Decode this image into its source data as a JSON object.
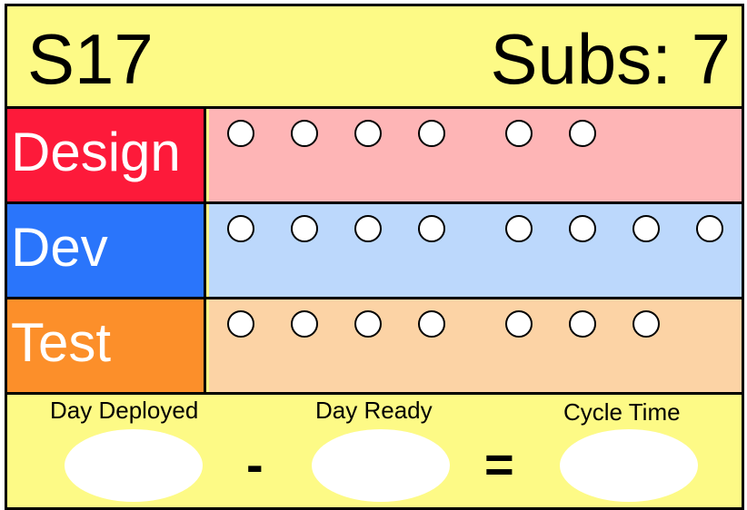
{
  "header": {
    "card_id": "S17",
    "subs": "Subs: 7"
  },
  "rows": [
    {
      "label": "Design",
      "label_color": "#fd1a3a",
      "track_color": "#feb5b6",
      "dots": 6
    },
    {
      "label": "Dev",
      "label_color": "#2a75fb",
      "track_color": "#bcd8fc",
      "dots": 8
    },
    {
      "label": "Test",
      "label_color": "#fc8f2a",
      "track_color": "#fcd3a5",
      "dots": 7
    }
  ],
  "footer": {
    "day_deployed": "Day Deployed",
    "minus": "-",
    "day_ready": "Day Ready",
    "equals": "=",
    "cycle_time": "Cycle Time"
  }
}
